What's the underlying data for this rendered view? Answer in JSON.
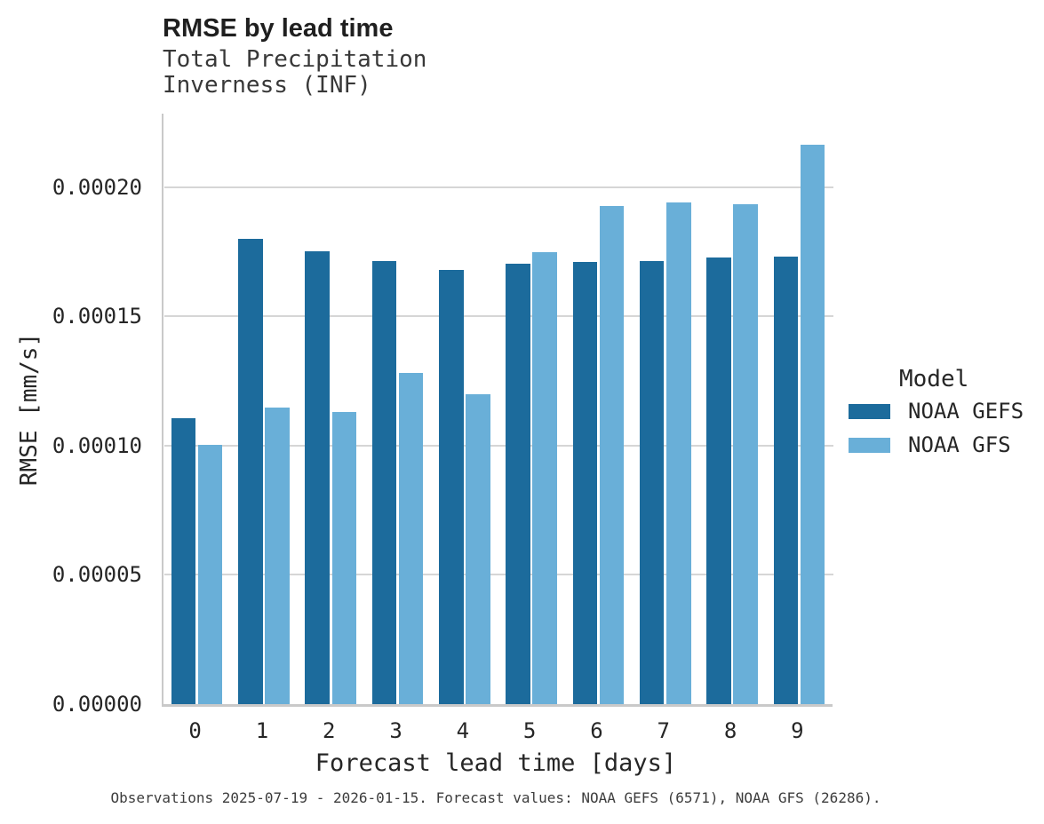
{
  "header": {
    "title": "RMSE by lead time",
    "subtitle_line1": "Total Precipitation",
    "subtitle_line2": "Inverness (INF)"
  },
  "chart_data": {
    "type": "bar",
    "title": "RMSE by lead time",
    "subtitle": [
      "Total Precipitation",
      "Inverness (INF)"
    ],
    "xlabel": "Forecast lead time [days]",
    "ylabel": "RMSE [mm/s]",
    "categories": [
      "0",
      "1",
      "2",
      "3",
      "4",
      "5",
      "6",
      "7",
      "8",
      "9"
    ],
    "series": [
      {
        "name": "NOAA GEFS",
        "color": "#1c6b9c",
        "values": [
          0.0001107,
          0.0001801,
          0.0001751,
          0.0001715,
          0.000168,
          0.0001703,
          0.0001711,
          0.0001715,
          0.0001729,
          0.0001732
        ]
      },
      {
        "name": "NOAA GFS",
        "color": "#69afd8",
        "values": [
          0.0001002,
          0.0001146,
          0.0001131,
          0.0001282,
          0.0001199,
          0.0001749,
          0.0001928,
          0.0001942,
          0.0001935,
          0.0002165
        ]
      }
    ],
    "ylim": [
      0,
      0.0002285
    ],
    "yticks": [
      {
        "value": 0.0,
        "label": "0.00000"
      },
      {
        "value": 5e-05,
        "label": "0.00005"
      },
      {
        "value": 0.0001,
        "label": "0.00010"
      },
      {
        "value": 0.00015,
        "label": "0.00015"
      },
      {
        "value": 0.0002,
        "label": "0.00020"
      }
    ],
    "grid": "horizontal",
    "legend_position": "right",
    "legend_title": "Model"
  },
  "legend": {
    "title": "Model",
    "items": [
      {
        "label": "NOAA GEFS",
        "color": "#1c6b9c"
      },
      {
        "label": "NOAA GFS",
        "color": "#69afd8"
      }
    ]
  },
  "footer": {
    "caption": "Observations 2025-07-19 - 2026-01-15. Forecast values: NOAA GEFS (6571), NOAA GFS (26286)."
  }
}
